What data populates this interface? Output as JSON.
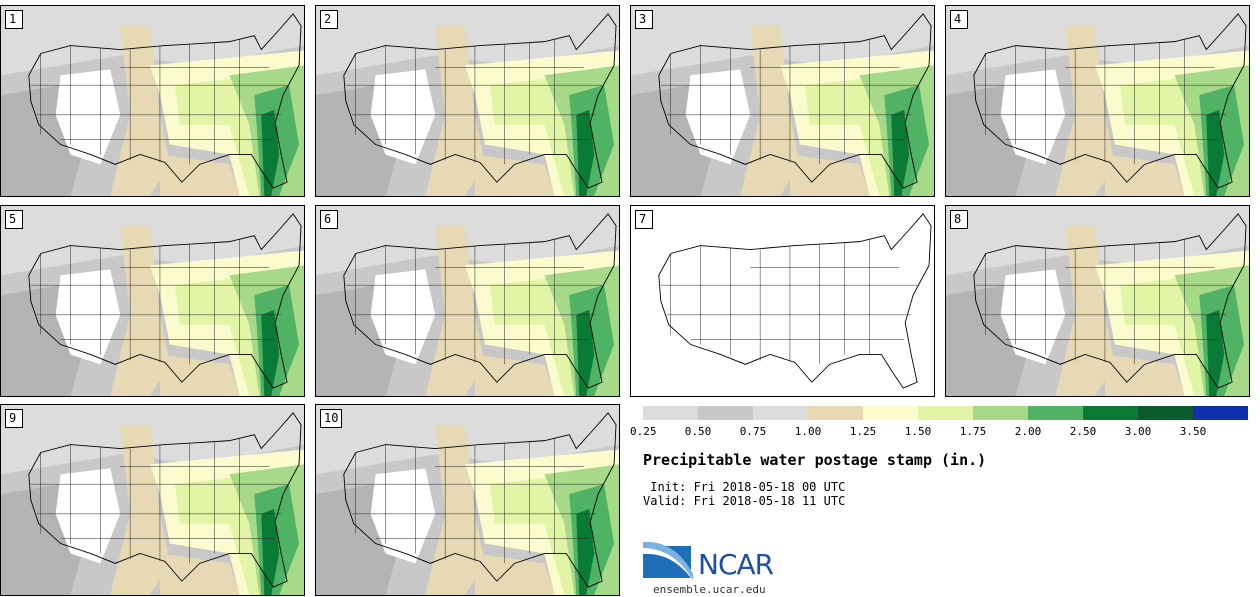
{
  "panels": [
    {
      "label": "1",
      "has_data": true
    },
    {
      "label": "2",
      "has_data": true
    },
    {
      "label": "3",
      "has_data": true
    },
    {
      "label": "4",
      "has_data": true
    },
    {
      "label": "5",
      "has_data": true
    },
    {
      "label": "6",
      "has_data": true
    },
    {
      "label": "7",
      "has_data": false
    },
    {
      "label": "8",
      "has_data": true
    },
    {
      "label": "9",
      "has_data": true
    },
    {
      "label": "10",
      "has_data": true
    }
  ],
  "colorbar": {
    "colors": [
      "#dcdcdc",
      "#c8c8c8",
      "#dddddd",
      "#e6d9b4",
      "#fbfbcd",
      "#e2f5a6",
      "#a7da88",
      "#4fb264",
      "#0a7b36",
      "#0b5b2c",
      "#1030b0"
    ],
    "ticks": [
      "0.25",
      "0.50",
      "0.75",
      "1.00",
      "1.25",
      "1.50",
      "1.75",
      "2.00",
      "2.50",
      "3.00",
      "3.50"
    ]
  },
  "title": "Precipitable water postage stamp (in.)",
  "init_line": " Init: Fri 2018-05-18 00 UTC",
  "valid_line": "Valid: Fri 2018-05-18 11 UTC",
  "logo": {
    "name": "NCAR",
    "url": "ensemble.ucar.edu"
  }
}
